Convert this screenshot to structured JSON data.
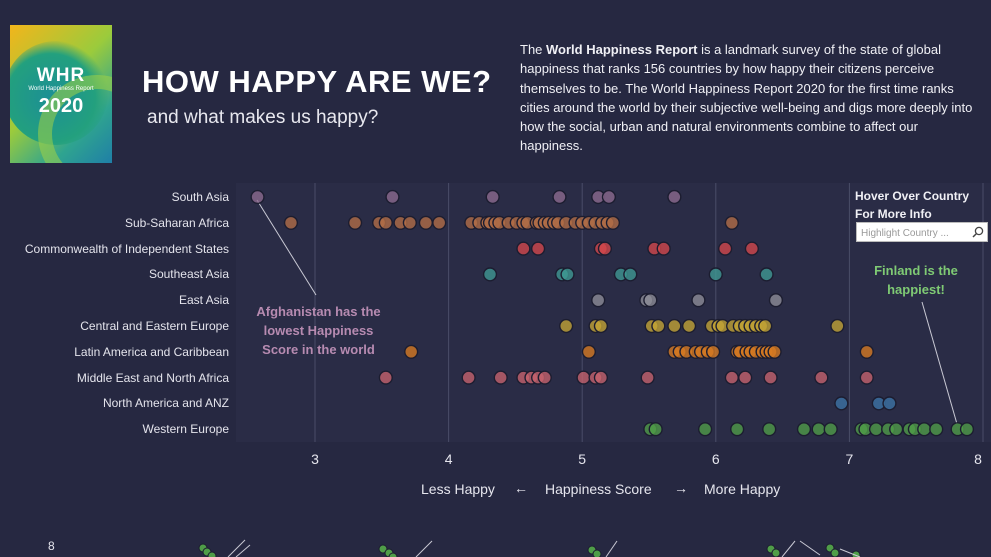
{
  "logo": {
    "mark": "WHR",
    "caption": "World Happiness Report",
    "year": "2020"
  },
  "header": {
    "title": "HOW HAPPY ARE WE?",
    "subtitle": "and what makes us happy?"
  },
  "intro": {
    "lead": "The ",
    "bold": "World Happiness Report",
    "text": " is a landmark survey of the state of global happiness that ranks 156 countries by how happy their citizens perceive themselves to be. The World Happiness Report 2020 for the first time ranks cities around the world by their subjective well-being and digs more deeply into how the social, urban and natural environments combine to affect our happiness."
  },
  "filter": {
    "label": "Hover Over Country For More Info",
    "placeholder": "Highlight Country ...",
    "icon": "search-icon"
  },
  "annotations": {
    "lowest": "Afghanistan has the lowest Happiness Score in the world",
    "highest": "Finland is the happiest!"
  },
  "axis": {
    "less": "Less Happy",
    "arrow_left": "←",
    "title": "Happiness Score",
    "arrow_right": "→",
    "more": "More Happy"
  },
  "bottom_chart": {
    "y_tick": "8"
  },
  "chart_data": {
    "type": "scatter",
    "x_title": "Happiness Score",
    "xlim": [
      2.4,
      8.0
    ],
    "x_ticks": [
      3,
      4,
      5,
      6,
      7,
      8
    ],
    "grid": "vertical",
    "series": [
      {
        "name": "South Asia",
        "color": "#8d6b90",
        "values": [
          2.57,
          3.58,
          4.33,
          4.83,
          5.12,
          5.2,
          5.69
        ]
      },
      {
        "name": "Sub-Saharan Africa",
        "color": "#b46e46",
        "values": [
          2.82,
          3.3,
          3.48,
          3.53,
          3.64,
          3.71,
          3.83,
          3.93,
          4.17,
          4.23,
          4.29,
          4.31,
          4.35,
          4.38,
          4.45,
          4.51,
          4.56,
          4.59,
          4.66,
          4.68,
          4.72,
          4.75,
          4.79,
          4.82,
          4.88,
          4.95,
          5.0,
          5.05,
          5.1,
          5.15,
          5.19,
          5.23,
          6.12
        ]
      },
      {
        "name": "Commonwealth of Independent States",
        "color": "#d5484c",
        "values": [
          4.56,
          4.67,
          5.14,
          5.17,
          5.54,
          5.61,
          6.07,
          6.27
        ]
      },
      {
        "name": "Southeast Asia",
        "color": "#3f9a94",
        "values": [
          4.31,
          4.85,
          4.89,
          5.29,
          5.36,
          6.0,
          6.38
        ]
      },
      {
        "name": "East Asia",
        "color": "#8e8e99",
        "values": [
          5.12,
          5.48,
          5.51,
          5.87,
          6.45
        ]
      },
      {
        "name": "Central and Eastern Europe",
        "color": "#c4a535",
        "values": [
          4.88,
          5.1,
          5.14,
          5.52,
          5.57,
          5.69,
          5.8,
          5.97,
          6.02,
          6.05,
          6.13,
          6.18,
          6.22,
          6.26,
          6.3,
          6.34,
          6.37,
          6.91
        ]
      },
      {
        "name": "Latin America and Caribbean",
        "color": "#d97b21",
        "values": [
          3.72,
          5.05,
          5.69,
          5.73,
          5.78,
          5.85,
          5.89,
          5.94,
          5.98,
          6.16,
          6.18,
          6.23,
          6.26,
          6.3,
          6.35,
          6.38,
          6.41,
          6.44,
          7.13
        ]
      },
      {
        "name": "Middle East and North Africa",
        "color": "#c7636d",
        "values": [
          3.53,
          4.15,
          4.39,
          4.56,
          4.62,
          4.67,
          4.72,
          5.01,
          5.1,
          5.14,
          5.49,
          6.12,
          6.22,
          6.41,
          6.79,
          7.13
        ]
      },
      {
        "name": "North America and ANZ",
        "color": "#3c74a6",
        "values": [
          6.94,
          7.22,
          7.3
        ]
      },
      {
        "name": "Western Europe",
        "color": "#4f9d48",
        "values": [
          5.51,
          5.55,
          5.92,
          6.16,
          6.4,
          6.66,
          6.77,
          6.86,
          7.09,
          7.12,
          7.2,
          7.29,
          7.35,
          7.45,
          7.49,
          7.56,
          7.65,
          7.81,
          7.88
        ]
      }
    ],
    "annotations": [
      "Afghanistan has the lowest Happiness Score in the world",
      "Finland is the happiest!"
    ]
  }
}
